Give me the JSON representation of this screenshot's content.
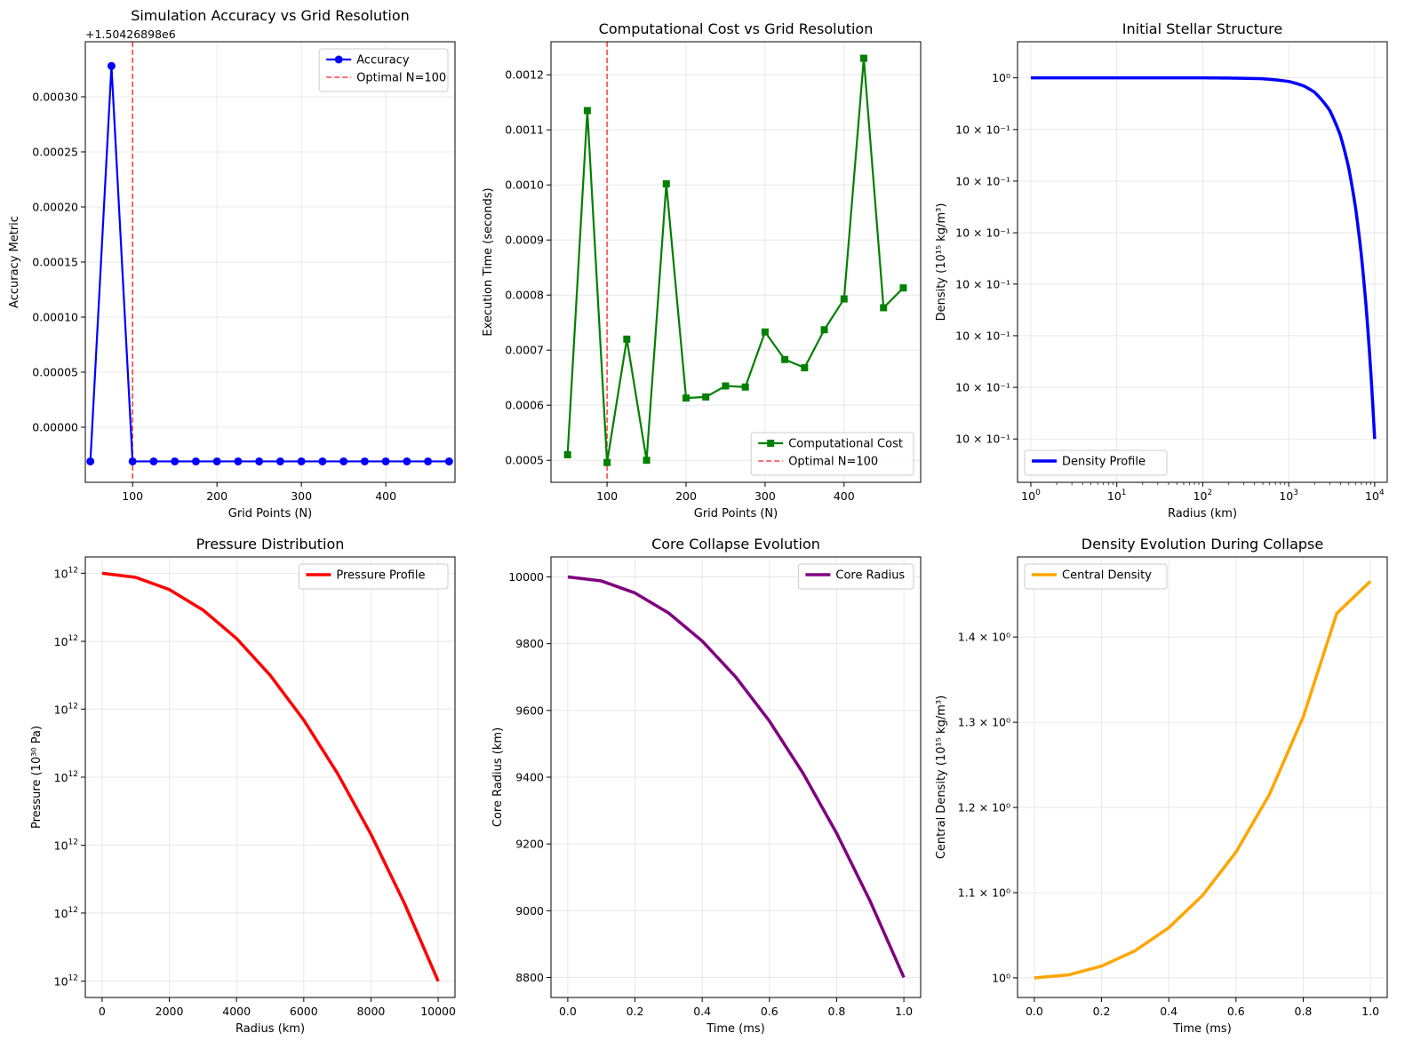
{
  "chart_data": [
    {
      "id": "accuracy",
      "type": "line",
      "title": "Simulation Accuracy vs Grid Resolution",
      "xlabel": "Grid Points (N)",
      "ylabel": "Accuracy Metric",
      "offset_text": "+1.50426898e6",
      "xlim": [
        44,
        482
      ],
      "ylim": [
        -5e-05,
        0.00035
      ],
      "xticks": [
        100,
        200,
        300,
        400
      ],
      "yticks": [
        0.0,
        5e-05,
        0.0001,
        0.00015,
        0.0002,
        0.00025,
        0.0003
      ],
      "ytick_labels": [
        "0.00000",
        "0.00005",
        "0.00010",
        "0.00015",
        "0.00020",
        "0.00025",
        "0.00030"
      ],
      "grid": true,
      "legend_position": "upper right",
      "series": [
        {
          "name": "Accuracy",
          "color": "#0000ff",
          "marker": "circle",
          "x": [
            50,
            75,
            100,
            125,
            150,
            175,
            200,
            225,
            250,
            275,
            300,
            325,
            350,
            375,
            400,
            425,
            450,
            475
          ],
          "values": [
            -3.1e-05,
            0.000328,
            -3.1e-05,
            -3.1e-05,
            -3.1e-05,
            -3.1e-05,
            -3.1e-05,
            -3.1e-05,
            -3.1e-05,
            -3.1e-05,
            -3.1e-05,
            -3.1e-05,
            -3.1e-05,
            -3.1e-05,
            -3.1e-05,
            -3.1e-05,
            -3.1e-05,
            -3.1e-05
          ]
        }
      ],
      "vline": {
        "x": 100,
        "name": "Optimal N=100",
        "color": "#ff0000"
      }
    },
    {
      "id": "cost",
      "type": "line",
      "title": "Computational Cost vs Grid Resolution",
      "xlabel": "Grid Points (N)",
      "ylabel": "Execution Time (seconds)",
      "xlim": [
        29,
        497
      ],
      "ylim": [
        0.00046,
        0.00126
      ],
      "xticks": [
        100,
        200,
        300,
        400
      ],
      "yticks": [
        0.0005,
        0.0006,
        0.0007,
        0.0008,
        0.0009,
        0.001,
        0.0011,
        0.0012
      ],
      "ytick_labels": [
        "0.0005",
        "0.0006",
        "0.0007",
        "0.0008",
        "0.0009",
        "0.0010",
        "0.0011",
        "0.0012"
      ],
      "grid": true,
      "legend_position": "lower right",
      "series": [
        {
          "name": "Computational Cost",
          "color": "#008000",
          "marker": "square",
          "x": [
            50,
            75,
            100,
            125,
            150,
            175,
            200,
            225,
            250,
            275,
            300,
            325,
            350,
            375,
            400,
            425,
            450,
            475
          ],
          "values": [
            0.00051,
            0.001135,
            0.000496,
            0.00072,
            0.0005,
            0.001002,
            0.000613,
            0.000615,
            0.000635,
            0.000633,
            0.000733,
            0.000683,
            0.000668,
            0.000737,
            0.000793,
            0.00123,
            0.000777,
            0.000813
          ]
        }
      ],
      "vline": {
        "x": 100,
        "name": "Optimal N=100",
        "color": "#ff0000"
      }
    },
    {
      "id": "structure",
      "type": "line",
      "title": "Initial Stellar Structure",
      "xlabel": "Radius (km)",
      "ylabel": "Density (10¹⁵ kg/m³)",
      "x_scale": "log",
      "xlim": [
        0.7,
        14000
      ],
      "ylim": [
        -0.12,
        1.1
      ],
      "xtick_base": "10",
      "xtick_exps": [
        "0",
        "1",
        "2",
        "3",
        "4"
      ],
      "ytick_labels": [
        "10⁰",
        "10 × 10⁻¹",
        "10 × 10⁻¹",
        "10 × 10⁻¹",
        "10 × 10⁻¹",
        "10 × 10⁻¹",
        "10 × 10⁻¹",
        "10 × 10⁻¹"
      ],
      "ytick_label_position": [
        1.0,
        0.857,
        0.714,
        0.571,
        0.429,
        0.286,
        0.143,
        0.0
      ],
      "grid": true,
      "legend_position": "lower left",
      "series": [
        {
          "name": "Density Profile",
          "color": "#0000ff",
          "x": [
            1,
            10,
            100,
            500,
            1000,
            1500,
            2000,
            3000,
            4000,
            5000,
            6000,
            7000,
            8000,
            9000,
            10000
          ],
          "values": [
            1.0,
            1.0,
            1.0,
            0.9975,
            0.99,
            0.9775,
            0.96,
            0.91,
            0.84,
            0.75,
            0.64,
            0.51,
            0.36,
            0.19,
            0.0
          ]
        }
      ]
    },
    {
      "id": "pressure",
      "type": "line",
      "title": "Pressure Distribution",
      "xlabel": "Radius (km)",
      "ylabel": "Pressure (10³⁰ Pa)",
      "xlim": [
        -500,
        10500
      ],
      "ylim": [
        -0.04,
        1.04
      ],
      "xticks": [
        0,
        2000,
        4000,
        6000,
        8000,
        10000
      ],
      "ytick_label_position": [
        1.0,
        0.833,
        0.667,
        0.5,
        0.333,
        0.167,
        0.0
      ],
      "ytick_base": "10",
      "ytick_exp": "12",
      "grid": true,
      "legend_position": "upper right",
      "series": [
        {
          "name": "Pressure Profile",
          "color": "#ff0000",
          "x": [
            0,
            1000,
            2000,
            3000,
            4000,
            5000,
            6000,
            7000,
            8000,
            9000,
            10000
          ],
          "values": [
            1.0,
            0.99,
            0.96,
            0.91,
            0.84,
            0.75,
            0.64,
            0.51,
            0.36,
            0.19,
            0.0
          ]
        }
      ]
    },
    {
      "id": "collapse",
      "type": "line",
      "title": "Core Collapse Evolution",
      "xlabel": "Time (ms)",
      "ylabel": "Core Radius (km)",
      "xlim": [
        -0.05,
        1.05
      ],
      "ylim": [
        8740,
        10060
      ],
      "xticks": [
        0.0,
        0.2,
        0.4,
        0.6,
        0.8,
        1.0
      ],
      "xtick_labels": [
        "0.0",
        "0.2",
        "0.4",
        "0.6",
        "0.8",
        "1.0"
      ],
      "yticks": [
        8800,
        9000,
        9200,
        9400,
        9600,
        9800,
        10000
      ],
      "grid": true,
      "legend_position": "upper right",
      "series": [
        {
          "name": "Core Radius",
          "color": "#800080",
          "x": [
            0,
            0.1,
            0.2,
            0.3,
            0.4,
            0.5,
            0.6,
            0.7,
            0.8,
            0.9,
            1.0
          ],
          "values": [
            10000,
            9988,
            9952,
            9892,
            9808,
            9700,
            9568,
            9412,
            9232,
            9028,
            8800
          ]
        }
      ]
    },
    {
      "id": "central",
      "type": "line",
      "title": "Density Evolution During Collapse",
      "xlabel": "Time (ms)",
      "ylabel": "Central Density (10¹⁵ kg/m³)",
      "xlim": [
        -0.05,
        1.05
      ],
      "ylim": [
        0.977,
        1.494
      ],
      "xticks": [
        0.0,
        0.2,
        0.4,
        0.6,
        0.8,
        1.0
      ],
      "xtick_labels": [
        "0.0",
        "0.2",
        "0.4",
        "0.6",
        "0.8",
        "1.0"
      ],
      "ytick_values": [
        1.0,
        1.1,
        1.2,
        1.3,
        1.4
      ],
      "ytick_labels": [
        "10⁰",
        "1.1 × 10⁰",
        "1.2 × 10⁰",
        "1.3 × 10⁰",
        "1.4 × 10⁰"
      ],
      "grid": true,
      "legend_position": "upper left",
      "series": [
        {
          "name": "Central Density",
          "color": "#ffa500",
          "x": [
            0,
            0.1,
            0.2,
            0.3,
            0.4,
            0.5,
            0.6,
            0.7,
            0.8,
            0.9,
            1.0
          ],
          "values": [
            1.0,
            1.0034,
            1.0138,
            1.0319,
            1.0589,
            1.0966,
            1.1476,
            1.2156,
            1.3062,
            1.4278,
            1.4655
          ]
        }
      ]
    }
  ]
}
